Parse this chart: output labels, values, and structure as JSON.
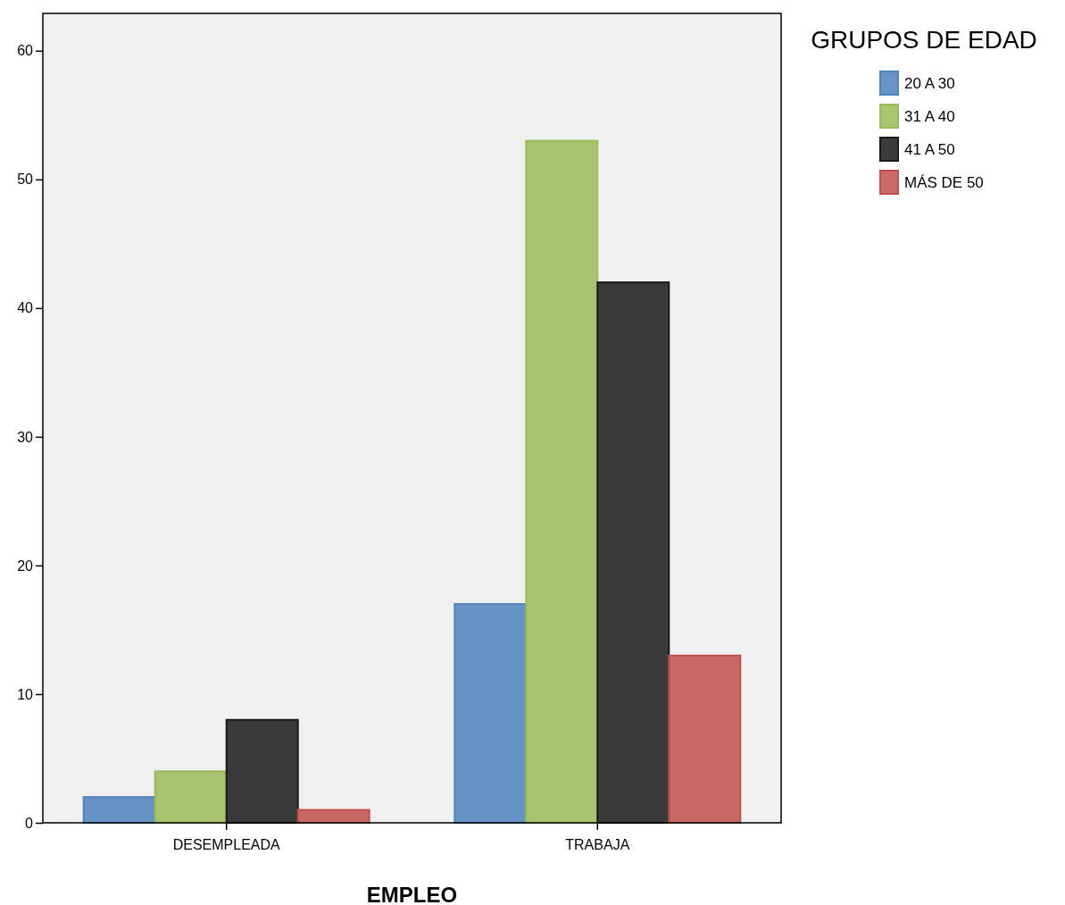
{
  "chart_data": {
    "type": "bar",
    "xlabel": "EMPLEO",
    "legend_title": "GRUPOS DE EDAD",
    "categories": [
      "DESEMPLEADA",
      "TRABAJA"
    ],
    "series": [
      {
        "name": "20 A 30",
        "color": "#4f81bd",
        "values": [
          2,
          17
        ]
      },
      {
        "name": "31 A 40",
        "color": "#9bbb59",
        "values": [
          4,
          53
        ]
      },
      {
        "name": "41 A 50",
        "color": "#1a1a1a",
        "values": [
          8,
          42
        ]
      },
      {
        "name": "MÁS DE 50",
        "color": "#c0504d",
        "values": [
          1,
          13
        ]
      }
    ],
    "ylim": [
      0,
      62.9
    ],
    "yticks": [
      0,
      10,
      20,
      30,
      40,
      50,
      60
    ],
    "grid": false,
    "legend": "top right"
  }
}
